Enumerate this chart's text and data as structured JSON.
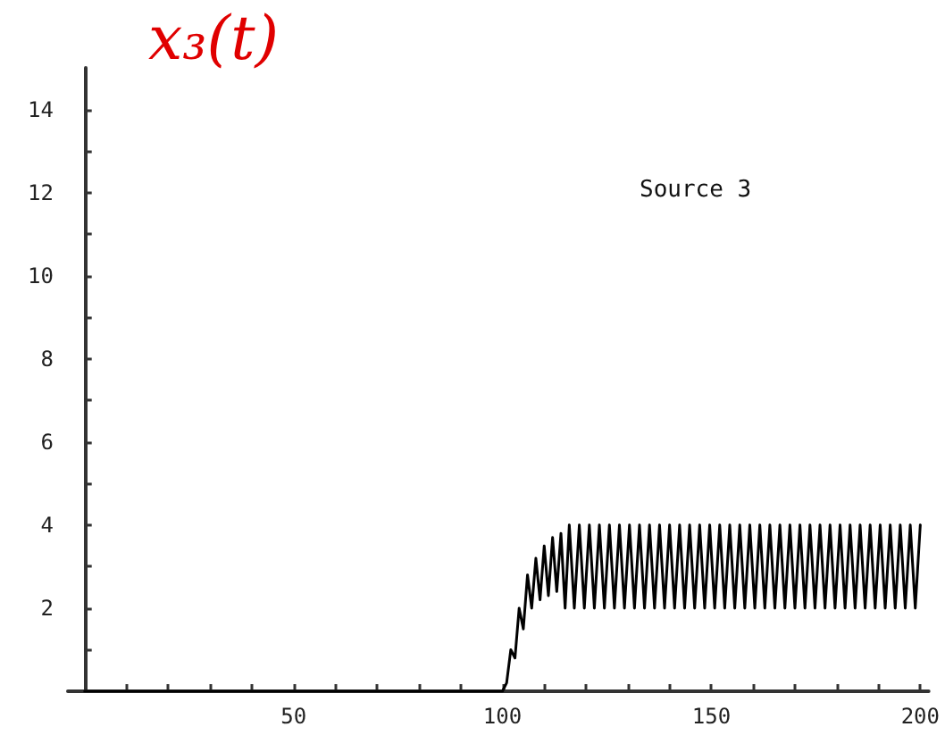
{
  "chart_data": {
    "type": "line",
    "title": "x₃(t)",
    "annotations": [
      "Source 3"
    ],
    "x": [
      0,
      100,
      101,
      102,
      103,
      104,
      105,
      106,
      107,
      108,
      109,
      110,
      111,
      112,
      113,
      114,
      115,
      116,
      117.2,
      118.4,
      119.6,
      120.8,
      122,
      123.2,
      124.4,
      125.6,
      126.8,
      128,
      129.2,
      130.4,
      131.6,
      132.8,
      134,
      135.2,
      136.4,
      137.6,
      138.8,
      140,
      141.2,
      142.4,
      143.6,
      144.8,
      146,
      147.2,
      148.4,
      149.6,
      150.8,
      152,
      153.2,
      154.4,
      155.6,
      156.8,
      158,
      159.2,
      160.4,
      161.6,
      162.8,
      164,
      165.2,
      166.4,
      167.6,
      168.8,
      170,
      171.2,
      172.4,
      173.6,
      174.8,
      176,
      177.2,
      178.4,
      179.6,
      180.8,
      182,
      183.2,
      184.4,
      185.6,
      186.8,
      188,
      189.2,
      190.4,
      191.6,
      192.8,
      194,
      195.2,
      196.4,
      197.6,
      198.8,
      200
    ],
    "series": [
      {
        "color": "#000000",
        "values": [
          0,
          0,
          0.2,
          1,
          0.8,
          2,
          1.5,
          2.8,
          2,
          3.2,
          2.2,
          3.5,
          2.3,
          3.7,
          2.4,
          3.8,
          2,
          4,
          2,
          4,
          2,
          4,
          2,
          4,
          2,
          4,
          2,
          4,
          2,
          4,
          2,
          4,
          2,
          4,
          2,
          4,
          2,
          4,
          2,
          4,
          2,
          4,
          2,
          4,
          2,
          4,
          2,
          4,
          2,
          4,
          2,
          4,
          2,
          4,
          2,
          4,
          2,
          4,
          2,
          4,
          2,
          4,
          2,
          4,
          2,
          4,
          2,
          4,
          2,
          4,
          2,
          4,
          2,
          4,
          2,
          4,
          2,
          4,
          2,
          4,
          2,
          4,
          2,
          4,
          2,
          4,
          2,
          4
        ]
      }
    ],
    "xlim": [
      -4,
      202
    ],
    "xticks": [
      {
        "value": 10,
        "label": null
      },
      {
        "value": 20,
        "label": null
      },
      {
        "value": 30,
        "label": null
      },
      {
        "value": 40,
        "label": null
      },
      50,
      {
        "value": 60,
        "label": null
      },
      {
        "value": 70,
        "label": null
      },
      {
        "value": 80,
        "label": null
      },
      {
        "value": 90,
        "label": null
      },
      100,
      {
        "value": 110,
        "label": null
      },
      {
        "value": 120,
        "label": null
      },
      {
        "value": 130,
        "label": null
      },
      {
        "value": 140,
        "label": null
      },
      150,
      {
        "value": 160,
        "label": null
      },
      {
        "value": 170,
        "label": null
      },
      {
        "value": 180,
        "label": null
      },
      {
        "value": 190,
        "label": null
      },
      200
    ],
    "ylim": [
      0,
      15
    ],
    "yticks": [
      {
        "value": 1,
        "label": null
      },
      2,
      {
        "value": 3,
        "label": null
      },
      4,
      {
        "value": 5,
        "label": null
      },
      6,
      {
        "value": 7,
        "label": null
      },
      8,
      {
        "value": 9,
        "label": null
      },
      10,
      {
        "value": 11,
        "label": null
      },
      12,
      {
        "value": 13,
        "label": null
      },
      14
    ],
    "grid": false,
    "marker": "none",
    "line_style": "solid"
  }
}
